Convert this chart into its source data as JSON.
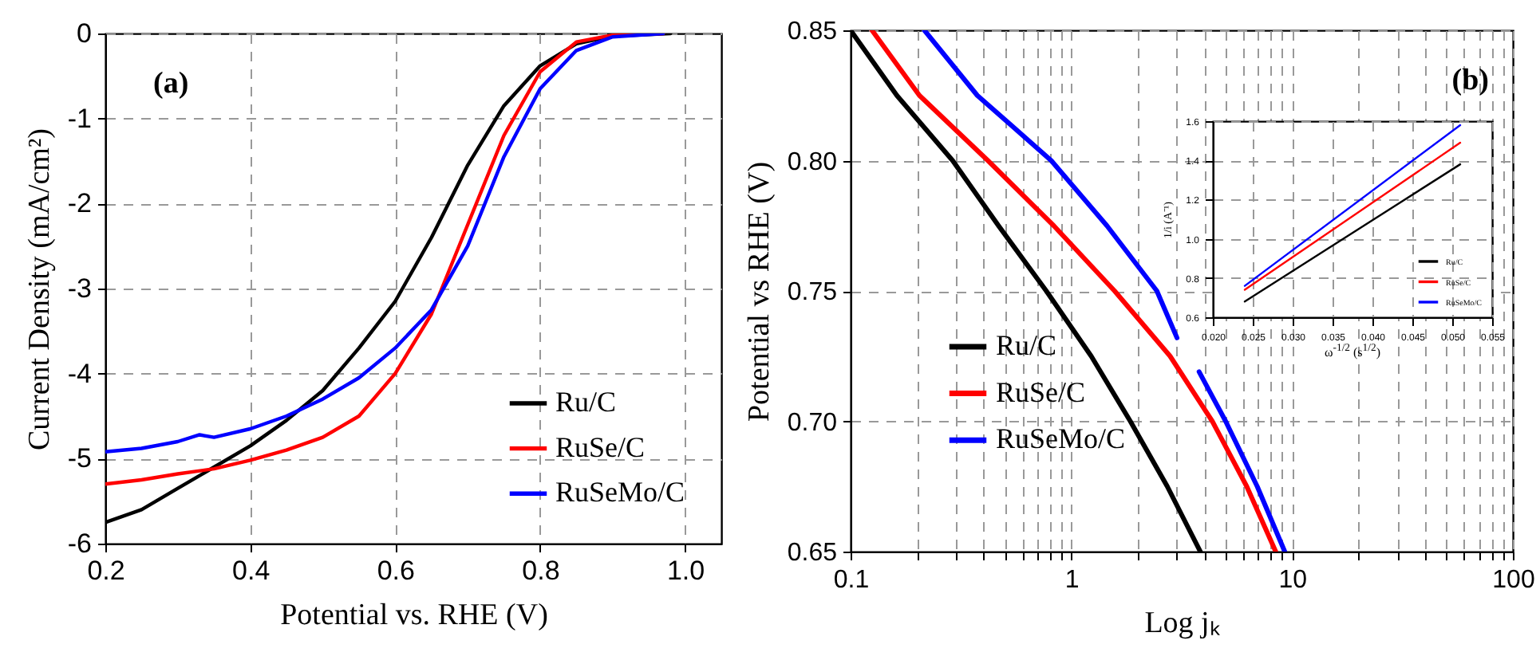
{
  "chart_data": [
    {
      "type": "line",
      "xlabel": "Potential vs. RHE (V)",
      "ylabel": "Current Density (mA/cm²)",
      "xlim": [
        0.2,
        1.05
      ],
      "ylim": [
        -6,
        0
      ],
      "xticks": [
        0.2,
        0.4,
        0.6,
        0.8,
        {
          "value": 1,
          "label": "1.0"
        }
      ],
      "yticks": [
        -6,
        -5,
        -4,
        -3,
        -2,
        -1,
        0
      ],
      "grid": true,
      "legend": "bottom right",
      "annotations": [
        "(a)"
      ],
      "series": [
        {
          "name": "Ru/C",
          "color": "#000000",
          "x": [
            0.2,
            0.25,
            0.3,
            0.35,
            0.4,
            0.45,
            0.5,
            0.55,
            0.6,
            0.65,
            0.7,
            0.75,
            0.8,
            0.85,
            0.9,
            0.98
          ],
          "values": [
            -5.75,
            -5.6,
            -5.35,
            -5.1,
            -4.85,
            -4.55,
            -4.2,
            -3.7,
            -3.15,
            -2.4,
            -1.55,
            -0.85,
            -0.38,
            -0.12,
            -0.03,
            0
          ]
        },
        {
          "name": "RuSe/C",
          "color": "#ff0000",
          "x": [
            0.2,
            0.25,
            0.3,
            0.35,
            0.4,
            0.45,
            0.5,
            0.55,
            0.6,
            0.65,
            0.7,
            0.75,
            0.8,
            0.85,
            0.9,
            0.97
          ],
          "values": [
            -5.3,
            -5.25,
            -5.18,
            -5.12,
            -5.02,
            -4.9,
            -4.75,
            -4.5,
            -4.0,
            -3.3,
            -2.25,
            -1.2,
            -0.45,
            -0.1,
            -0.02,
            0
          ]
        },
        {
          "name": "RuSeMo/C",
          "color": "#0000ff",
          "x": [
            0.2,
            0.25,
            0.3,
            0.33,
            0.35,
            0.4,
            0.45,
            0.5,
            0.55,
            0.6,
            0.65,
            0.7,
            0.75,
            0.8,
            0.85,
            0.9,
            0.97
          ],
          "values": [
            -4.92,
            -4.88,
            -4.8,
            -4.72,
            -4.75,
            -4.65,
            -4.5,
            -4.3,
            -4.05,
            -3.7,
            -3.25,
            -2.5,
            -1.45,
            -0.65,
            -0.2,
            -0.04,
            0
          ]
        }
      ]
    },
    {
      "type": "line",
      "xlabel": "Log jₖ",
      "ylabel": "Potential vs RHE (V)",
      "log": "x",
      "xlim": [
        0.1,
        100
      ],
      "ylim": [
        0.65,
        0.85
      ],
      "xticks": [
        0.1,
        {
          "value": 0.2,
          "label": null
        },
        {
          "value": 0.3,
          "label": null
        },
        {
          "value": 0.4,
          "label": null
        },
        {
          "value": 0.5,
          "label": null
        },
        {
          "value": 0.6,
          "label": null
        },
        {
          "value": 0.7,
          "label": null
        },
        {
          "value": 0.8,
          "label": null
        },
        {
          "value": 0.9,
          "label": null
        },
        1,
        {
          "value": 2,
          "label": null
        },
        {
          "value": 3,
          "label": null
        },
        {
          "value": 4,
          "label": null
        },
        {
          "value": 5,
          "label": null
        },
        {
          "value": 6,
          "label": null
        },
        {
          "value": 7,
          "label": null
        },
        {
          "value": 8,
          "label": null
        },
        {
          "value": 9,
          "label": null
        },
        10,
        {
          "value": 20,
          "label": null
        },
        {
          "value": 30,
          "label": null
        },
        {
          "value": 40,
          "label": null
        },
        {
          "value": 50,
          "label": null
        },
        {
          "value": 60,
          "label": null
        },
        {
          "value": 70,
          "label": null
        },
        {
          "value": 80,
          "label": null
        },
        {
          "value": 90,
          "label": null
        },
        100
      ],
      "yticks": [
        0.65,
        {
          "value": 0.7,
          "label": "0.70"
        },
        0.75,
        {
          "value": 0.8,
          "label": "0.80"
        },
        0.85
      ],
      "grid": true,
      "legend": "bottom left",
      "annotations": [
        "(b)"
      ],
      "series": [
        {
          "name": "Ru/C",
          "color": "#000000",
          "x": [
            0.1,
            0.162,
            0.29,
            0.468,
            0.77,
            1.23,
            1.85,
            2.72,
            3.84
          ],
          "values": [
            0.85,
            0.825,
            0.8,
            0.775,
            0.75,
            0.725,
            0.7,
            0.675,
            0.65
          ]
        },
        {
          "name": "RuSe/C",
          "color": "#ff0000",
          "x": [
            0.125,
            0.205,
            0.419,
            0.833,
            1.57,
            2.8,
            4.35,
            6.23,
            8.43
          ],
          "values": [
            0.85,
            0.825,
            0.8,
            0.775,
            0.75,
            0.725,
            0.7,
            0.675,
            0.65
          ]
        },
        {
          "name": "RuSeMo/C",
          "color": "#0000ff",
          "x": [
            0.216,
            0.375,
            0.811,
            1.45,
            2.44,
            3.01,
            3.3,
            3.79,
            5.0,
            6.95,
            9.26
          ],
          "values": [
            0.85,
            0.825,
            0.8,
            0.775,
            0.75,
            0.732,
            null,
            0.719,
            0.7,
            0.675,
            0.65
          ]
        }
      ]
    },
    {
      "type": "line",
      "xlabel": "ω$^{-1/2}$ (s$^{1/2}$)",
      "ylabel": "1/i (A⁻¹)",
      "xlim": [
        0.02,
        0.055
      ],
      "ylim": [
        0.6,
        1.6
      ],
      "xticks": [
        {
          "value": 0.02,
          "label": "0.020"
        },
        0.025,
        {
          "value": 0.03,
          "label": "0.030"
        },
        0.035,
        {
          "value": 0.04,
          "label": "0.040"
        },
        0.045,
        {
          "value": 0.05,
          "label": "0.050"
        },
        0.055
      ],
      "yticks": [
        0.6,
        0.8,
        {
          "value": 1,
          "label": "1.0"
        },
        1.2,
        1.4,
        1.6
      ],
      "grid": true,
      "legend": "bottom right",
      "series": [
        {
          "name": "Ru/C",
          "color": "#000000",
          "x": [
            0.024,
            0.051
          ],
          "values": [
            0.68,
            1.38
          ]
        },
        {
          "name": "RuSe/C",
          "color": "#ff0000",
          "x": [
            0.024,
            0.051
          ],
          "values": [
            0.74,
            1.49
          ]
        },
        {
          "name": "RuSeMo/C",
          "color": "#0000ff",
          "x": [
            0.024,
            0.051
          ],
          "values": [
            0.76,
            1.58
          ]
        }
      ]
    }
  ]
}
